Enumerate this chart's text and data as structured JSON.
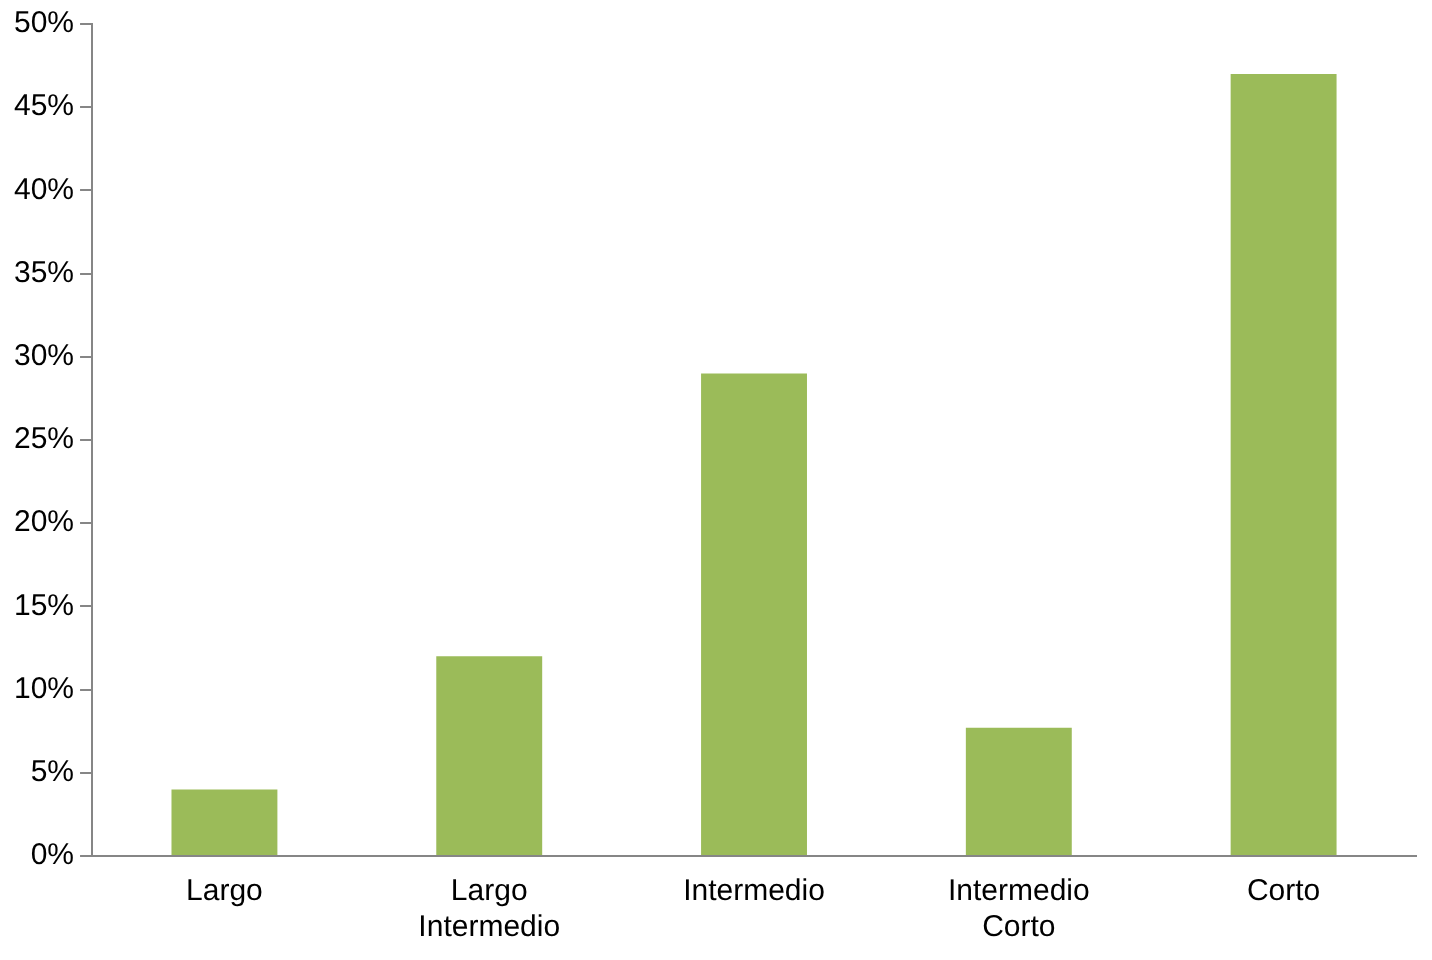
{
  "chart_data": {
    "type": "bar",
    "categories": [
      "Largo",
      "Largo Intermedio",
      "Intermedio",
      "Intermedio Corto",
      "Corto"
    ],
    "values": [
      4,
      12,
      29,
      7.7,
      47
    ],
    "color": "#9bbb59",
    "ylim": [
      0,
      50
    ],
    "yticks": [
      {
        "value": 0,
        "label": "0%"
      },
      {
        "value": 5,
        "label": "5%"
      },
      {
        "value": 10,
        "label": "10%"
      },
      {
        "value": 15,
        "label": "15%"
      },
      {
        "value": 20,
        "label": "20%"
      },
      {
        "value": 25,
        "label": "25%"
      },
      {
        "value": 30,
        "label": "30%"
      },
      {
        "value": 35,
        "label": "35%"
      },
      {
        "value": 40,
        "label": "40%"
      },
      {
        "value": 45,
        "label": "45%"
      },
      {
        "value": 50,
        "label": "50%"
      }
    ],
    "grid": false,
    "legend": false
  }
}
